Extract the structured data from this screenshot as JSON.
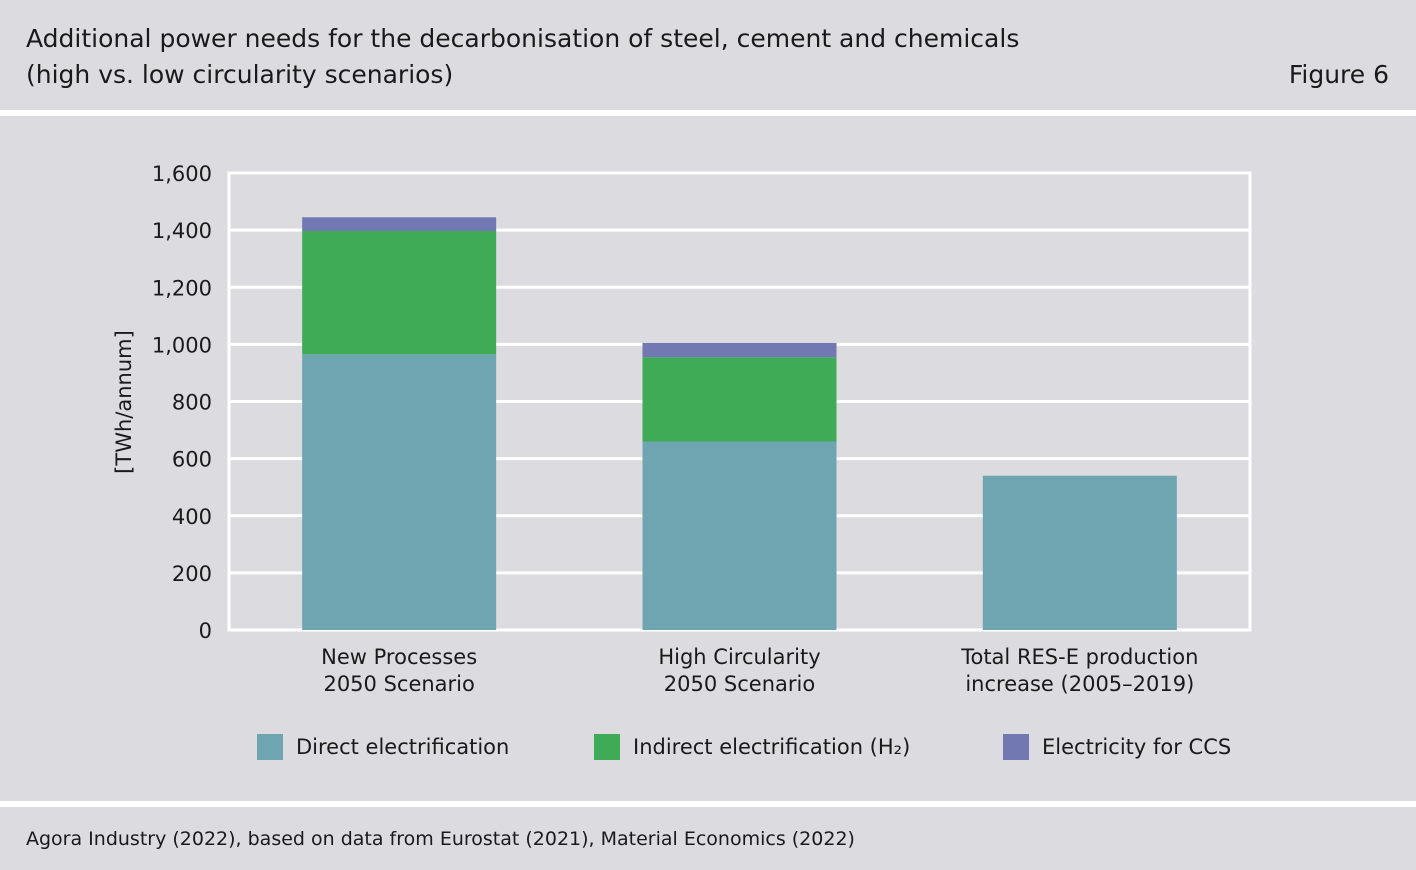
{
  "header": {
    "title_line1": "Additional power needs for the decarbonisation of steel, cement and chemicals",
    "title_line2": "(high vs. low circularity scenarios)",
    "figure_label": "Figure 6"
  },
  "footer": {
    "source": "Agora Industry (2022), based on data from Eurostat (2021), Material Economics (2022)"
  },
  "chart_data": {
    "type": "bar",
    "stacked": true,
    "categories": [
      [
        "New Processes",
        "2050 Scenario"
      ],
      [
        "High Circularity",
        "2050 Scenario"
      ],
      [
        "Total RES-E production",
        "increase (2005–2019)"
      ]
    ],
    "series": [
      {
        "name": "Direct electrification",
        "color": "#6ea5b1",
        "values": [
          965,
          660,
          540
        ]
      },
      {
        "name": "Indirect electrification (H₂)",
        "color": "#40ab57",
        "values": [
          432,
          295,
          0
        ]
      },
      {
        "name": "Electricity for CCS",
        "color": "#7278b1",
        "values": [
          48,
          50,
          0
        ]
      }
    ],
    "ylabel": "[TWh/annum]",
    "xlabel": "",
    "ylim": [
      0,
      1600
    ],
    "yticks": [
      0,
      200,
      400,
      600,
      800,
      1000,
      1200,
      1400,
      1600
    ],
    "ytick_labels": [
      "0",
      "200",
      "400",
      "600",
      "800",
      "1,000",
      "1,200",
      "1,400",
      "1,600"
    ],
    "grid": true,
    "legend_position": "bottom"
  }
}
